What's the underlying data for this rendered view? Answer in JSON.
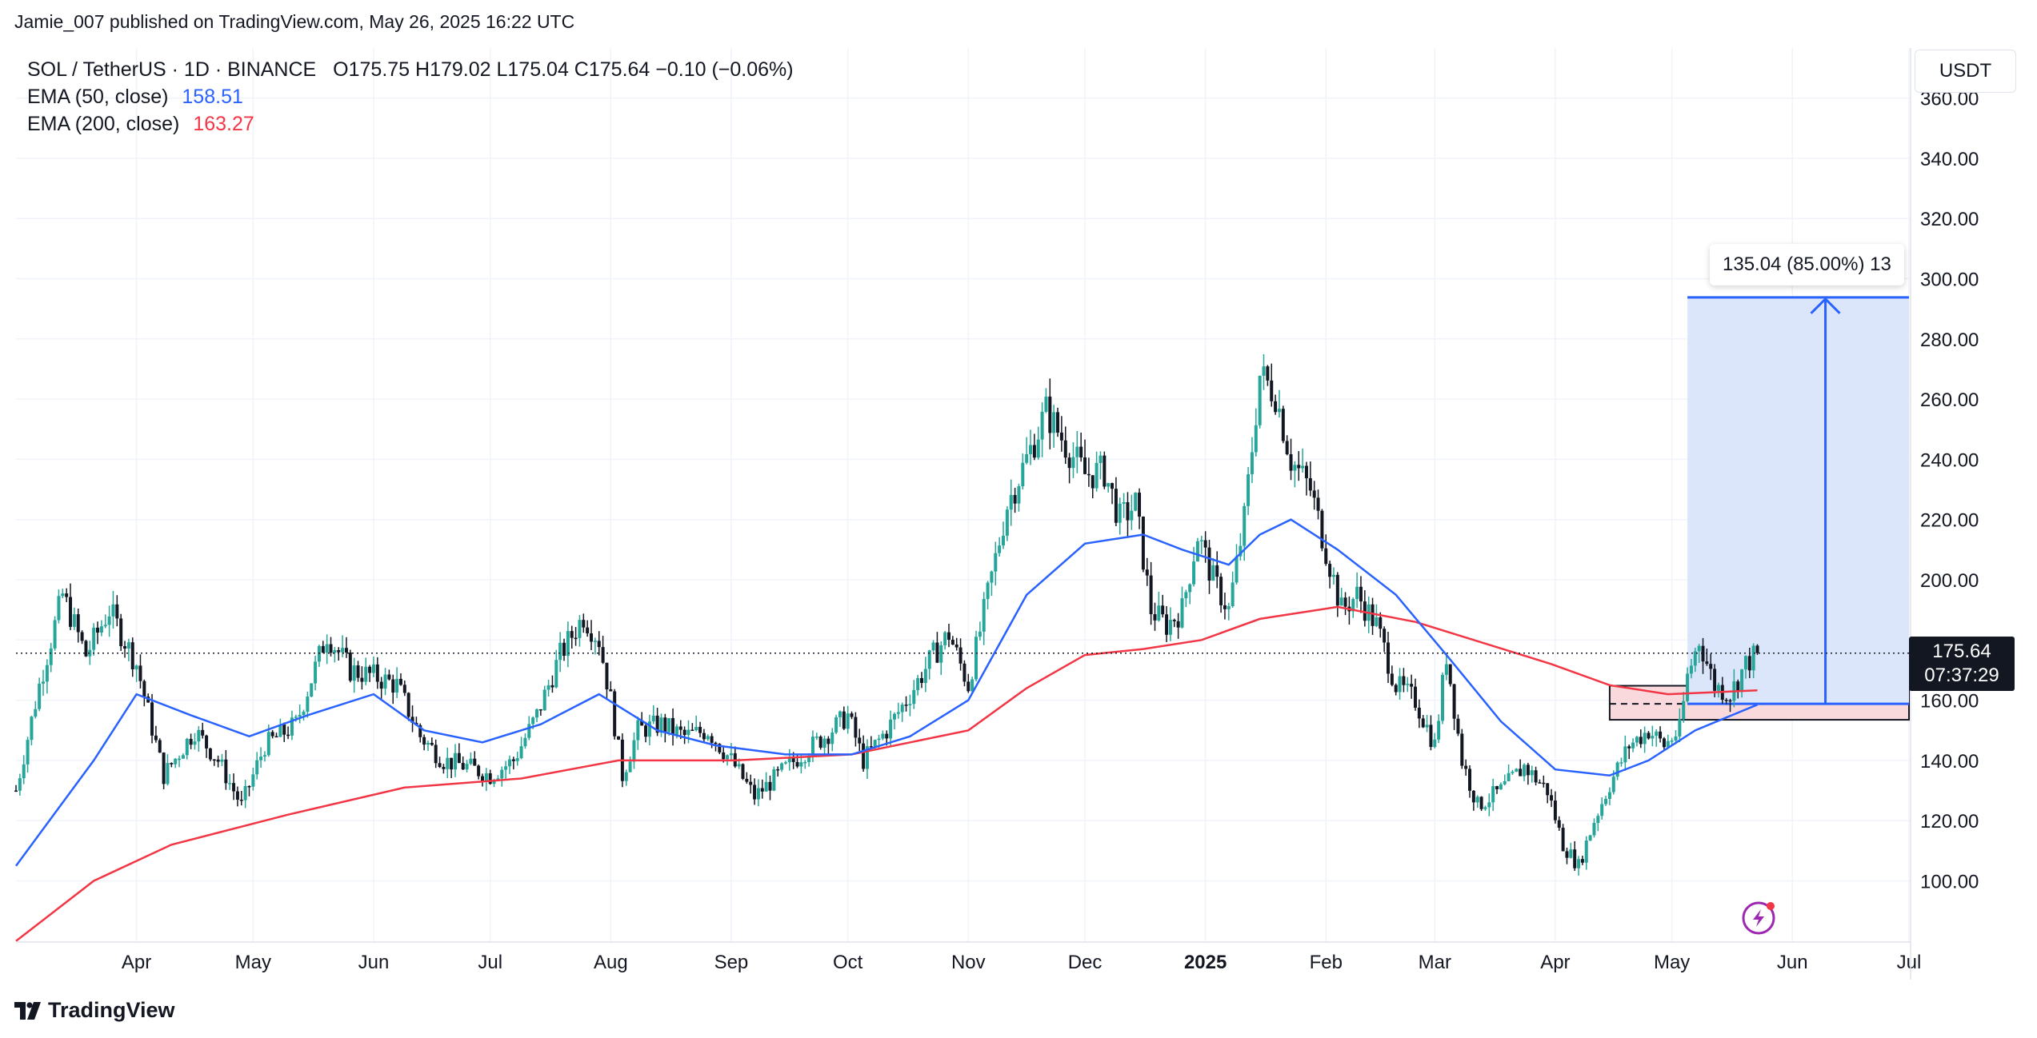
{
  "header": {
    "publisher_line": "Jamie_007 published on TradingView.com, May 26, 2025 16:22 UTC"
  },
  "legend": {
    "symbol_line": "SOL / TetherUS · 1D · BINANCE",
    "ohlc": "O175.75  H179.02  L175.04  C175.64  −0.10 (−0.06%)",
    "ema50_label": "EMA (50, close)",
    "ema50_value": "158.51",
    "ema200_label": "EMA (200, close)",
    "ema200_value": "163.27"
  },
  "price_axis": {
    "currency": "USDT"
  },
  "last_price": {
    "value": "175.64",
    "countdown": "07:37:29"
  },
  "measure_tool": {
    "label": "135.04 (85.00%) 13"
  },
  "footer": {
    "brand": "TradingView"
  },
  "colors": {
    "up": "#26a69a",
    "down": "#131722",
    "ema50": "#2962ff",
    "ema200": "#f23645",
    "measure_fill": "#dce6fb",
    "measure_line": "#2962ff",
    "zone_fill": "#f9d9dc"
  },
  "icons": [
    "tradingview-logo-icon",
    "lightning-icon"
  ],
  "chart_data": {
    "type": "candlestick",
    "title": "SOL / TetherUS · 1D · BINANCE",
    "y_axis": {
      "ticks": [
        100,
        120,
        140,
        160,
        180,
        200,
        220,
        240,
        260,
        280,
        300,
        320,
        340,
        360
      ],
      "tick_labels": [
        "100.00",
        "120.00",
        "140.00",
        "160.00",
        "",
        "200.00",
        "220.00",
        "240.00",
        "260.00",
        "280.00",
        "300.00",
        "320.00",
        "340.00",
        "360.00"
      ],
      "range": [
        80,
        370
      ]
    },
    "x_axis": {
      "labels": [
        "Apr",
        "May",
        "Jun",
        "Jul",
        "Aug",
        "Sep",
        "Oct",
        "Nov",
        "Dec",
        "2025",
        "Feb",
        "Mar",
        "Apr",
        "May",
        "Jun",
        "Jul"
      ],
      "label_t": [
        31,
        61,
        92,
        122,
        153,
        184,
        214,
        245,
        275,
        306,
        337,
        365,
        396,
        426,
        457,
        487
      ]
    },
    "series_close_points": [
      [
        0,
        130
      ],
      [
        6,
        165
      ],
      [
        12,
        195
      ],
      [
        18,
        175
      ],
      [
        24,
        190
      ],
      [
        31,
        172
      ],
      [
        38,
        135
      ],
      [
        46,
        150
      ],
      [
        52,
        140
      ],
      [
        58,
        125
      ],
      [
        64,
        145
      ],
      [
        72,
        152
      ],
      [
        80,
        182
      ],
      [
        86,
        170
      ],
      [
        92,
        168
      ],
      [
        98,
        165
      ],
      [
        104,
        148
      ],
      [
        110,
        140
      ],
      [
        116,
        138
      ],
      [
        122,
        135
      ],
      [
        128,
        140
      ],
      [
        134,
        155
      ],
      [
        140,
        175
      ],
      [
        146,
        188
      ],
      [
        150,
        180
      ],
      [
        153,
        160
      ],
      [
        156,
        135
      ],
      [
        160,
        150
      ],
      [
        166,
        152
      ],
      [
        172,
        148
      ],
      [
        178,
        150
      ],
      [
        184,
        140
      ],
      [
        190,
        128
      ],
      [
        196,
        135
      ],
      [
        202,
        142
      ],
      [
        208,
        148
      ],
      [
        214,
        155
      ],
      [
        218,
        140
      ],
      [
        224,
        150
      ],
      [
        230,
        162
      ],
      [
        236,
        175
      ],
      [
        240,
        182
      ],
      [
        245,
        165
      ],
      [
        250,
        195
      ],
      [
        255,
        225
      ],
      [
        260,
        240
      ],
      [
        265,
        256
      ],
      [
        270,
        245
      ],
      [
        275,
        235
      ],
      [
        280,
        236
      ],
      [
        284,
        220
      ],
      [
        288,
        225
      ],
      [
        292,
        190
      ],
      [
        296,
        185
      ],
      [
        300,
        190
      ],
      [
        304,
        215
      ],
      [
        308,
        200
      ],
      [
        312,
        190
      ],
      [
        316,
        220
      ],
      [
        320,
        268
      ],
      [
        324,
        262
      ],
      [
        328,
        240
      ],
      [
        333,
        230
      ],
      [
        337,
        210
      ],
      [
        341,
        190
      ],
      [
        345,
        195
      ],
      [
        350,
        185
      ],
      [
        355,
        165
      ],
      [
        360,
        160
      ],
      [
        365,
        145
      ],
      [
        368,
        175
      ],
      [
        372,
        140
      ],
      [
        376,
        125
      ],
      [
        382,
        130
      ],
      [
        388,
        138
      ],
      [
        394,
        130
      ],
      [
        398,
        112
      ],
      [
        402,
        105
      ],
      [
        406,
        120
      ],
      [
        410,
        132
      ],
      [
        415,
        145
      ],
      [
        420,
        150
      ],
      [
        424,
        145
      ],
      [
        428,
        150
      ],
      [
        430,
        168
      ],
      [
        433,
        180
      ],
      [
        437,
        165
      ],
      [
        441,
        162
      ],
      [
        445,
        172
      ],
      [
        448,
        175.64
      ]
    ],
    "ema50_points": [
      [
        0,
        105
      ],
      [
        20,
        140
      ],
      [
        31,
        162
      ],
      [
        45,
        155
      ],
      [
        60,
        148
      ],
      [
        75,
        155
      ],
      [
        92,
        162
      ],
      [
        105,
        150
      ],
      [
        120,
        146
      ],
      [
        135,
        152
      ],
      [
        150,
        162
      ],
      [
        165,
        150
      ],
      [
        180,
        145
      ],
      [
        198,
        142
      ],
      [
        215,
        142
      ],
      [
        230,
        148
      ],
      [
        245,
        160
      ],
      [
        260,
        195
      ],
      [
        275,
        212
      ],
      [
        290,
        215
      ],
      [
        300,
        210
      ],
      [
        312,
        205
      ],
      [
        320,
        215
      ],
      [
        328,
        220
      ],
      [
        340,
        210
      ],
      [
        355,
        195
      ],
      [
        368,
        175
      ],
      [
        382,
        153
      ],
      [
        396,
        137
      ],
      [
        410,
        135
      ],
      [
        420,
        140
      ],
      [
        432,
        150
      ],
      [
        448,
        158.51
      ]
    ],
    "ema200_points": [
      [
        0,
        80
      ],
      [
        20,
        100
      ],
      [
        40,
        112
      ],
      [
        70,
        122
      ],
      [
        100,
        131
      ],
      [
        130,
        134
      ],
      [
        155,
        140
      ],
      [
        185,
        140
      ],
      [
        215,
        142
      ],
      [
        245,
        150
      ],
      [
        260,
        164
      ],
      [
        275,
        175
      ],
      [
        290,
        177
      ],
      [
        305,
        180
      ],
      [
        320,
        187
      ],
      [
        340,
        191
      ],
      [
        360,
        186
      ],
      [
        380,
        178
      ],
      [
        395,
        172
      ],
      [
        410,
        165
      ],
      [
        425,
        162
      ],
      [
        448,
        163.27
      ]
    ],
    "last_price": 175.64,
    "measure": {
      "from_t": 430,
      "to_t": 487,
      "low": 158.8,
      "high": 293.8,
      "change": 135.04,
      "change_pct": 85.0
    },
    "zone": {
      "from_t": 410,
      "to_t": 487,
      "low": 153.5,
      "high": 164.8,
      "midline": 158.8
    },
    "legend_placement": "top-left",
    "grid": true
  }
}
